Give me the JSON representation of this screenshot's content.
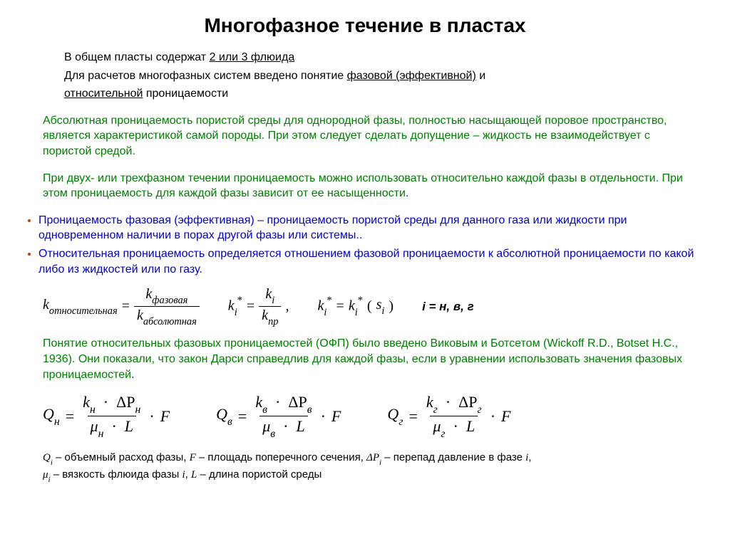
{
  "title": "Многофазное течение в пластах",
  "intro": {
    "l1a": "В общем пласты содержат ",
    "l1u": "2 или 3 флюида",
    "l2a": "Для расчетов многофазных систем введено понятие ",
    "l2u1": "фазовой (эффективной)",
    "l2b": " и ",
    "l3u": "относительной",
    "l3b": " проницаемости"
  },
  "green1": "Абсолютная проницаемость пористой среды для однородной фазы, полностью насыщающей поровое пространство, является характеристикой самой породы. При этом следует сделать допущение – жидкость не взаимодействует с пористой средой.",
  "green2": "При двух- или трехфазном течении проницаемость можно использовать относительно каждой фазы в отдельности. При этом проницаемость для каждой фазы зависит от ее насыщенности",
  "bullet1": "Проницаемость фазовая (эффективная) – проницаемость пористой среды для данного газа или жидкости при одновременном наличии в порах другой фазы или системы..",
  "bullet2": "Относительная проницаемость определяется отношением фазовой проницаемости к абсолютной проницаемости по какой либо из жидкостей или по газу.",
  "formulas": {
    "k_rel_lhs": "k",
    "k_rel_sub": "относительная",
    "eq": "=",
    "k_phase": "фазовая",
    "k_abs": "абсолютная",
    "k": "k",
    "star": "*",
    "i": "i",
    "np": "np",
    "s": "s",
    "open": "(",
    "close": ")",
    "index_label": "i = н, в, г",
    "comma": ","
  },
  "green_note_a": "Понятие относительных фазовых проницаемостей (ОФП) было введено Виковым и Ботсетом (Wickoff R.D., Botset H.C., 1936). Они показали, что закон Дарси справедлив для каждой фазы, если в уравнении использовать значения фазовых проницаемостей",
  "darcy": {
    "Q": "Q",
    "k": "k",
    "dP": "ΔP",
    "mu": "μ",
    "L": "L",
    "F": "F",
    "dot": "·",
    "eq": "=",
    "sub_n": "н",
    "sub_v": "в",
    "sub_g": "г"
  },
  "legend": {
    "Qi": "Q",
    "Qi_sub": "i",
    "q_desc": " – объемный расход фазы, ",
    "F": "F",
    "f_desc": " – площадь поперечного сечения, ",
    "dP": "ΔP",
    "dP_sub": "i",
    "dp_desc": " – перепад давление в фазе ",
    "i_word": "i",
    "comma": ",",
    "mu": "μ",
    "mu_sub": "i",
    "mu_desc": " – вязкость флюида фазы ",
    "L": "L",
    "l_desc": " – длина пористой среды"
  },
  "colors": {
    "green": "#008000",
    "blue": "#0000d0",
    "bullet": "#c04000",
    "text": "#000000",
    "bg": "#ffffff"
  }
}
